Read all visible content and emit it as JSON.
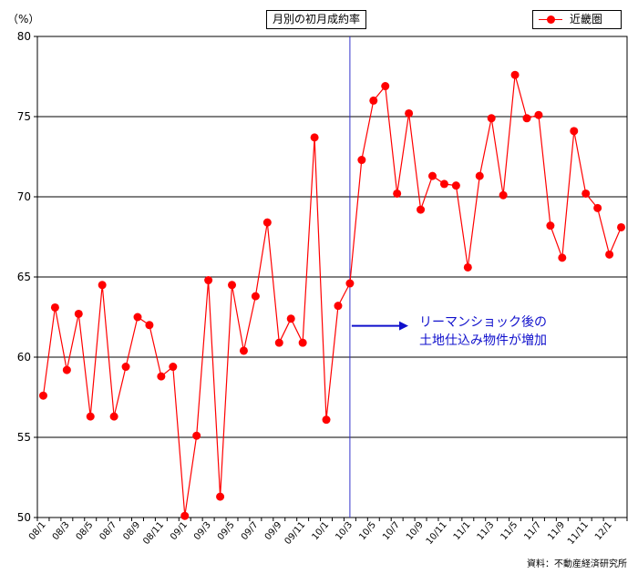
{
  "title": "月別の初月成約率",
  "y_unit": "（%）",
  "legend_label": "近畿圏",
  "annotation": [
    "リーマンショック後の",
    "土地仕込み物件が増加"
  ],
  "source": "資料：不動産経済研究所",
  "colors": {
    "series": "#ff0000",
    "marker_line": "#3333cc",
    "annotation": "#1010cc"
  },
  "chart_data": {
    "type": "line",
    "title": "月別の初月成約率",
    "ylabel": "（%）",
    "ylim": [
      50,
      80
    ],
    "y_ticks": [
      50,
      55,
      60,
      65,
      70,
      75,
      80
    ],
    "grid": true,
    "legend": "top-right",
    "x": [
      "08/1",
      "08/2",
      "08/3",
      "08/4",
      "08/5",
      "08/6",
      "08/7",
      "08/8",
      "08/9",
      "08/10",
      "08/11",
      "08/12",
      "09/1",
      "09/2",
      "09/3",
      "09/4",
      "09/5",
      "09/6",
      "09/7",
      "09/8",
      "09/9",
      "09/10",
      "09/11",
      "09/12",
      "10/1",
      "10/2",
      "10/3",
      "10/4",
      "10/5",
      "10/6",
      "10/7",
      "10/8",
      "10/9",
      "10/10",
      "10/11",
      "10/12",
      "11/1",
      "11/2",
      "11/3",
      "11/4",
      "11/5",
      "11/6",
      "11/7",
      "11/8",
      "11/9",
      "11/10",
      "11/11",
      "11/12",
      "12/1",
      "12/2"
    ],
    "x_tick_labels": [
      "08/1",
      "08/3",
      "08/5",
      "08/7",
      "08/9",
      "08/11",
      "09/1",
      "09/3",
      "09/5",
      "09/7",
      "09/9",
      "09/11",
      "10/1",
      "10/3",
      "10/5",
      "10/7",
      "10/9",
      "10/11",
      "11/1",
      "11/3",
      "11/5",
      "11/7",
      "11/9",
      "11/11",
      "12/1"
    ],
    "series": [
      {
        "name": "近畿圏",
        "values": [
          57.6,
          63.1,
          59.2,
          62.7,
          56.3,
          64.5,
          56.3,
          59.4,
          62.5,
          62.0,
          58.8,
          59.4,
          50.1,
          55.1,
          64.8,
          51.3,
          64.5,
          60.4,
          63.8,
          68.4,
          60.9,
          62.4,
          60.9,
          73.7,
          56.1,
          63.2,
          64.6,
          72.3,
          76.0,
          76.9,
          70.2,
          75.2,
          69.2,
          71.3,
          70.8,
          70.7,
          65.6,
          71.3,
          74.9,
          70.1,
          77.6,
          74.9,
          75.1,
          68.2,
          66.2,
          74.1,
          70.2,
          69.3,
          66.4,
          68.1
        ]
      }
    ],
    "annotation_line_at": "10/3"
  }
}
